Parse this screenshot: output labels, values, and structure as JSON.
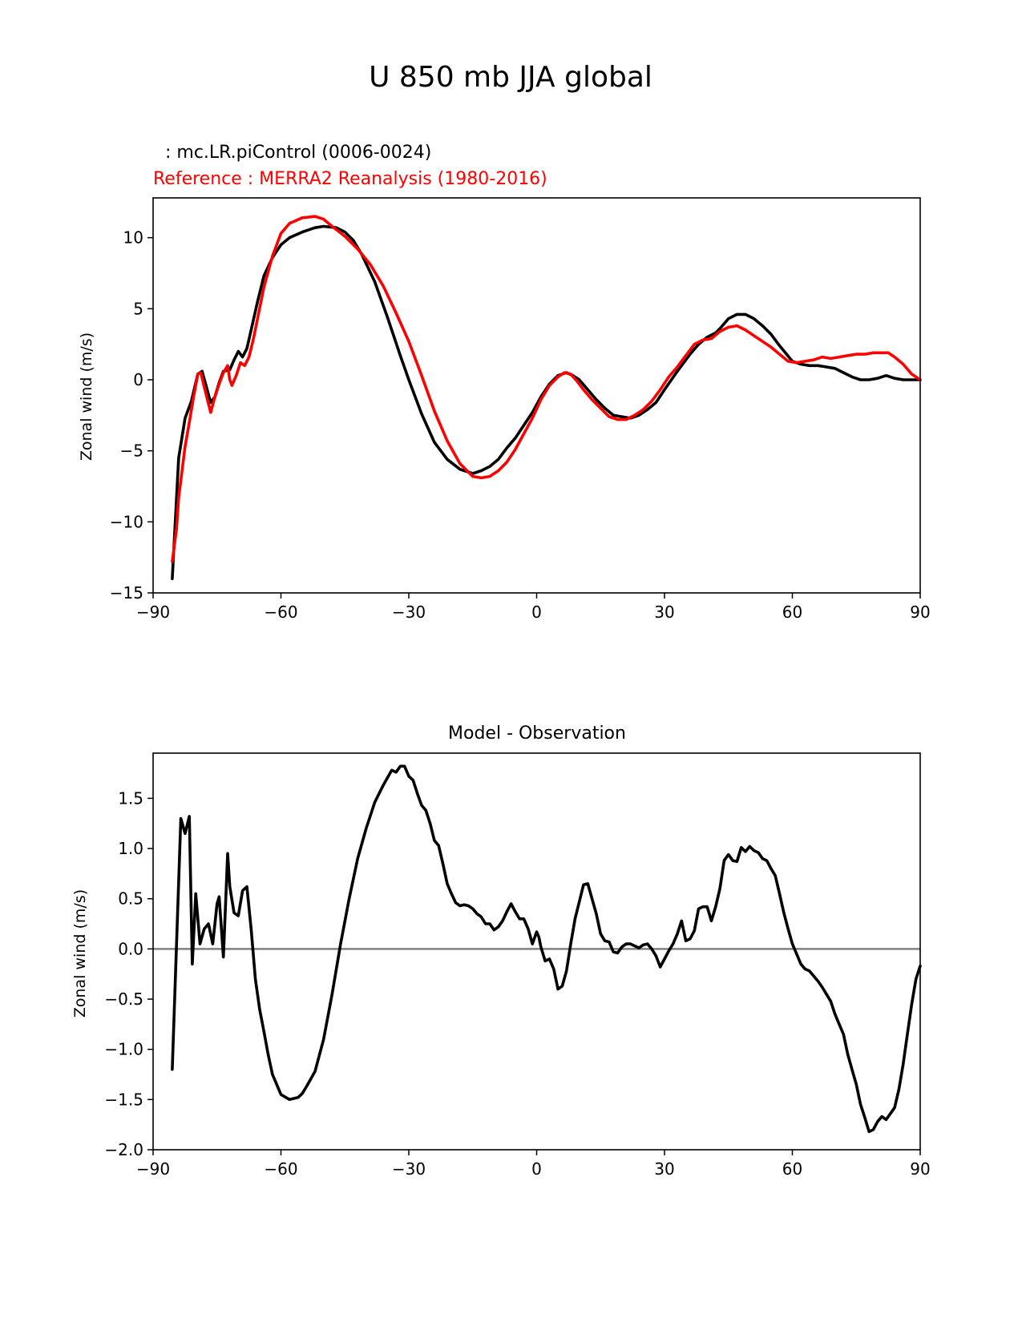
{
  "figure": {
    "title": "U 850 mb JJA global"
  },
  "chart_data": [
    {
      "type": "line",
      "model_label": ": mc.LR.piControl (0006-0024)",
      "reference_label": "Reference : MERRA2 Reanalysis (1980-2016)",
      "ylabel": "Zonal wind (m/s)",
      "xlabel": "",
      "xlim": [
        -90,
        90
      ],
      "ylim": [
        -15,
        12.8
      ],
      "xticks": [
        -90,
        -60,
        -30,
        0,
        30,
        60,
        90
      ],
      "xtick_labels": [
        "−90",
        "−60",
        "−30",
        "0",
        "30",
        "60",
        "90"
      ],
      "yticks": [
        -15,
        -10,
        -5,
        0,
        5,
        10
      ],
      "ytick_labels": [
        "−15",
        "−10",
        "−5",
        "0",
        "5",
        "10"
      ],
      "grid": false,
      "series": [
        {
          "name": "mc.LR.piControl (0006-0024)",
          "color": "#000000",
          "x": [
            -85.5,
            -84,
            -82.5,
            -81,
            -79.5,
            -78.5,
            -77.5,
            -76.5,
            -75.5,
            -74.5,
            -73.5,
            -72,
            -71,
            -70,
            -69,
            -68,
            -67,
            -65.5,
            -64,
            -62,
            -60,
            -58,
            -55,
            -52,
            -50,
            -47,
            -45,
            -43,
            -41,
            -38,
            -35,
            -32,
            -30,
            -27,
            -24,
            -21,
            -18,
            -15,
            -13,
            -11,
            -9,
            -7,
            -5,
            -3,
            -1,
            1,
            3,
            5,
            7,
            8.5,
            10,
            12,
            14,
            16,
            18,
            20,
            22,
            24,
            26,
            28,
            30,
            33,
            36,
            38,
            40,
            42,
            43,
            45,
            47,
            49,
            51,
            53,
            55,
            57,
            60,
            62,
            64,
            66,
            68,
            70,
            72,
            74,
            76,
            78,
            80,
            82,
            84,
            86,
            88,
            90
          ],
          "y": [
            -14.0,
            -5.5,
            -2.7,
            -1.5,
            0.4,
            0.6,
            -0.5,
            -1.6,
            -1.2,
            -0.2,
            0.6,
            0.7,
            1.4,
            2.0,
            1.6,
            2.2,
            3.5,
            5.5,
            7.3,
            8.6,
            9.5,
            10.0,
            10.4,
            10.7,
            10.8,
            10.7,
            10.4,
            9.8,
            8.8,
            6.9,
            4.4,
            1.7,
            0.0,
            -2.4,
            -4.4,
            -5.6,
            -6.3,
            -6.6,
            -6.4,
            -6.1,
            -5.6,
            -4.8,
            -4.1,
            -3.2,
            -2.3,
            -1.2,
            -0.3,
            0.3,
            0.5,
            0.3,
            0.0,
            -0.7,
            -1.4,
            -2.0,
            -2.5,
            -2.6,
            -2.7,
            -2.5,
            -2.1,
            -1.6,
            -0.7,
            0.6,
            1.8,
            2.5,
            3.0,
            3.3,
            3.6,
            4.3,
            4.6,
            4.6,
            4.3,
            3.8,
            3.2,
            2.4,
            1.3,
            1.1,
            1.0,
            1.0,
            0.9,
            0.8,
            0.5,
            0.2,
            0.0,
            0.0,
            0.1,
            0.3,
            0.1,
            0.0,
            0.0,
            0.0
          ]
        },
        {
          "name": "Reference : MERRA2 Reanalysis (1980-2016)",
          "color": "#ff0000",
          "x": [
            -85.5,
            -84.5,
            -84,
            -82.5,
            -81.5,
            -80.5,
            -79.5,
            -78.8,
            -78,
            -77,
            -76.5,
            -75.5,
            -74.5,
            -73.5,
            -72.5,
            -72,
            -71.5,
            -70.5,
            -69.5,
            -68.5,
            -67.5,
            -66.5,
            -65.5,
            -64,
            -62,
            -60,
            -58,
            -55,
            -52,
            -50,
            -48,
            -45,
            -42,
            -39,
            -36,
            -33,
            -30,
            -27,
            -24,
            -21,
            -18,
            -15,
            -13,
            -11,
            -9,
            -7,
            -5,
            -3,
            -1,
            1,
            3,
            5,
            6.5,
            8,
            9.5,
            11,
            13,
            15,
            17,
            19,
            21,
            23,
            25,
            27,
            29,
            31,
            33,
            35,
            37,
            39,
            41,
            43,
            45,
            47,
            49,
            51,
            53,
            55,
            57,
            59,
            61,
            63,
            65,
            67,
            69,
            71,
            73,
            75,
            77,
            79,
            81,
            82.5,
            84,
            86,
            88,
            90
          ],
          "y": [
            -12.8,
            -10.5,
            -8.3,
            -4.7,
            -3.0,
            -1.2,
            0.4,
            0.5,
            -0.5,
            -1.7,
            -2.3,
            -1.2,
            -0.3,
            0.5,
            1.0,
            0.0,
            -0.4,
            0.3,
            1.2,
            1.0,
            1.6,
            2.8,
            4.3,
            6.5,
            8.7,
            10.3,
            11.0,
            11.4,
            11.5,
            11.3,
            10.8,
            10.1,
            9.2,
            8.1,
            6.6,
            4.7,
            2.7,
            0.3,
            -2.2,
            -4.3,
            -5.9,
            -6.8,
            -6.9,
            -6.8,
            -6.4,
            -5.8,
            -4.9,
            -3.8,
            -2.7,
            -1.4,
            -0.4,
            0.2,
            0.5,
            0.4,
            -0.1,
            -0.7,
            -1.4,
            -2.0,
            -2.6,
            -2.8,
            -2.8,
            -2.5,
            -2.1,
            -1.5,
            -0.7,
            0.2,
            0.9,
            1.7,
            2.5,
            2.8,
            2.9,
            3.4,
            3.7,
            3.8,
            3.5,
            3.1,
            2.7,
            2.3,
            1.8,
            1.3,
            1.2,
            1.3,
            1.4,
            1.6,
            1.5,
            1.6,
            1.7,
            1.8,
            1.8,
            1.9,
            1.9,
            1.9,
            1.6,
            1.1,
            0.4,
            0.0
          ]
        }
      ]
    },
    {
      "type": "line",
      "title": "Model - Observation",
      "ylabel": "Zonal wind (m/s)",
      "xlabel": "",
      "xlim": [
        -90,
        90
      ],
      "ylim": [
        -2.0,
        1.95
      ],
      "xticks": [
        -90,
        -60,
        -30,
        0,
        30,
        60,
        90
      ],
      "xtick_labels": [
        "−90",
        "−60",
        "−30",
        "0",
        "30",
        "60",
        "90"
      ],
      "yticks": [
        -2.0,
        -1.5,
        -1.0,
        -0.5,
        0.0,
        0.5,
        1.0,
        1.5
      ],
      "ytick_labels": [
        "−2.0",
        "−1.5",
        "−1.0",
        "−0.5",
        "0.0",
        "0.5",
        "1.0",
        "1.5"
      ],
      "grid": false,
      "zero_line_color": "#808080",
      "series": [
        {
          "color": "#000000",
          "x": [
            -85.5,
            -83.5,
            -82.5,
            -81.5,
            -80.8,
            -80,
            -79,
            -78,
            -77,
            -76,
            -75,
            -74.5,
            -73.5,
            -72.5,
            -72,
            -71,
            -70,
            -69,
            -68,
            -67,
            -66,
            -65,
            -64,
            -63,
            -62,
            -61,
            -60,
            -58,
            -56,
            -55,
            -54,
            -52,
            -50,
            -48,
            -46,
            -44,
            -42,
            -40,
            -38,
            -36,
            -34,
            -33,
            -32,
            -31,
            -30,
            -29,
            -28,
            -27,
            -26,
            -25,
            -24,
            -23,
            -22,
            -21,
            -20,
            -19,
            -18,
            -17,
            -16,
            -15,
            -14,
            -13,
            -12,
            -11,
            -10,
            -9,
            -8,
            -7,
            -6,
            -5,
            -4,
            -3,
            -2,
            -1,
            0,
            0.5,
            1,
            2,
            3,
            4,
            5,
            6,
            7,
            8,
            9,
            10,
            11,
            12,
            13,
            14,
            15,
            16,
            17,
            18,
            19,
            20,
            21,
            22,
            23,
            24,
            25,
            26,
            27,
            28,
            29,
            30,
            31,
            32,
            33,
            34,
            35,
            36,
            37,
            38,
            39,
            40,
            41,
            42,
            43,
            44,
            45,
            46,
            47,
            48,
            49,
            50,
            51,
            52,
            53,
            54,
            55,
            56,
            57,
            58,
            59,
            60,
            61,
            62,
            63,
            64,
            65,
            66,
            67,
            68,
            69,
            70,
            71,
            72,
            73,
            74,
            75,
            76,
            77,
            78,
            79,
            80,
            81,
            82,
            83,
            84,
            85,
            86,
            87,
            88,
            89,
            90
          ],
          "y": [
            -1.2,
            1.3,
            1.15,
            1.32,
            -0.15,
            0.55,
            0.05,
            0.2,
            0.25,
            0.05,
            0.45,
            0.52,
            -0.08,
            0.95,
            0.62,
            0.36,
            0.33,
            0.58,
            0.62,
            0.2,
            -0.3,
            -0.6,
            -0.82,
            -1.05,
            -1.25,
            -1.35,
            -1.45,
            -1.5,
            -1.48,
            -1.44,
            -1.37,
            -1.22,
            -0.9,
            -0.45,
            0.05,
            0.5,
            0.9,
            1.2,
            1.46,
            1.63,
            1.78,
            1.76,
            1.82,
            1.82,
            1.72,
            1.68,
            1.55,
            1.43,
            1.38,
            1.25,
            1.08,
            1.03,
            0.85,
            0.65,
            0.55,
            0.46,
            0.43,
            0.44,
            0.43,
            0.4,
            0.35,
            0.32,
            0.25,
            0.25,
            0.19,
            0.22,
            0.28,
            0.37,
            0.45,
            0.37,
            0.3,
            0.3,
            0.2,
            0.05,
            0.17,
            0.12,
            0.02,
            -0.12,
            -0.1,
            -0.2,
            -0.4,
            -0.37,
            -0.22,
            0.05,
            0.3,
            0.47,
            0.64,
            0.65,
            0.5,
            0.35,
            0.15,
            0.08,
            0.07,
            -0.03,
            -0.04,
            0.02,
            0.05,
            0.05,
            0.03,
            0.01,
            0.04,
            0.05,
            0.0,
            -0.07,
            -0.18,
            -0.1,
            -0.02,
            0.05,
            0.15,
            0.28,
            0.08,
            0.1,
            0.18,
            0.4,
            0.42,
            0.42,
            0.28,
            0.42,
            0.6,
            0.88,
            0.94,
            0.88,
            0.87,
            1.01,
            0.97,
            1.02,
            0.98,
            0.96,
            0.9,
            0.88,
            0.8,
            0.73,
            0.55,
            0.36,
            0.2,
            0.05,
            -0.05,
            -0.15,
            -0.2,
            -0.22,
            -0.27,
            -0.32,
            -0.38,
            -0.45,
            -0.52,
            -0.65,
            -0.75,
            -0.85,
            -1.05,
            -1.2,
            -1.35,
            -1.55,
            -1.68,
            -1.82,
            -1.8,
            -1.72,
            -1.67,
            -1.7,
            -1.64,
            -1.58,
            -1.4,
            -1.15,
            -0.85,
            -0.55,
            -0.3,
            -0.17
          ]
        }
      ]
    }
  ]
}
